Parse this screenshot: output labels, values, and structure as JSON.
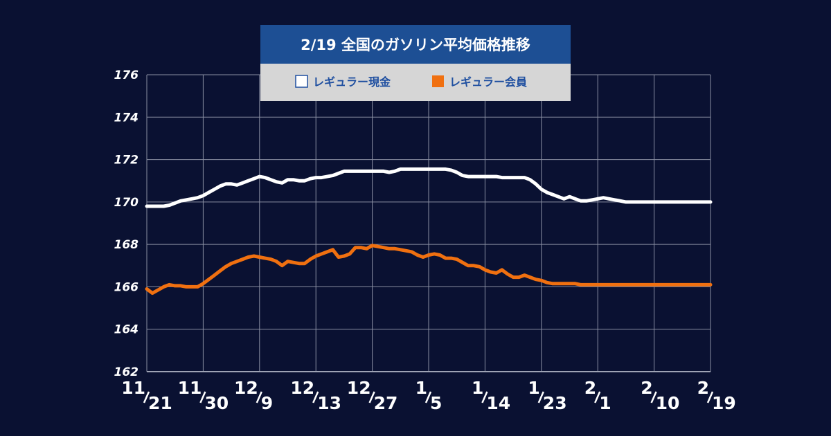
{
  "chart_data": {
    "type": "line",
    "title": "2/19 全国のガソリン平均価格推移",
    "legend_placement": "top-center",
    "grid": true,
    "ylim": [
      162,
      176
    ],
    "yticks": [
      "162",
      "164",
      "166",
      "168",
      "170",
      "172",
      "174",
      "176"
    ],
    "xticks": [
      {
        "main": "11",
        "sub": "21"
      },
      {
        "main": "11",
        "sub": "30"
      },
      {
        "main": "12",
        "sub": "9"
      },
      {
        "main": "12",
        "sub": "13"
      },
      {
        "main": "12",
        "sub": "27"
      },
      {
        "main": "1",
        "sub": "5"
      },
      {
        "main": "1",
        "sub": "14"
      },
      {
        "main": "1",
        "sub": "23"
      },
      {
        "main": "2",
        "sub": "1"
      },
      {
        "main": "2",
        "sub": "10"
      },
      {
        "main": "2",
        "sub": "19"
      }
    ],
    "x": [
      0,
      0.1,
      0.2,
      0.3,
      0.4,
      0.5,
      0.6,
      0.7,
      0.8,
      0.9,
      1.0,
      1.1,
      1.2,
      1.3,
      1.4,
      1.5,
      1.6,
      1.7,
      1.8,
      1.9,
      2.0,
      2.1,
      2.2,
      2.3,
      2.4,
      2.5,
      2.6,
      2.7,
      2.8,
      2.9,
      3.0,
      3.1,
      3.2,
      3.3,
      3.4,
      3.5,
      3.6,
      3.7,
      3.8,
      3.9,
      4.0,
      4.1,
      4.2,
      4.3,
      4.4,
      4.5,
      4.6,
      4.7,
      4.8,
      4.9,
      5.0,
      5.1,
      5.2,
      5.3,
      5.4,
      5.5,
      5.6,
      5.7,
      5.8,
      5.9,
      6.0,
      6.1,
      6.2,
      6.3,
      6.4,
      6.5,
      6.6,
      6.7,
      6.8,
      6.9,
      7.0,
      7.1,
      7.2,
      7.3,
      7.4,
      7.5,
      7.6,
      7.7,
      7.8,
      7.9,
      8.0,
      8.1,
      8.2,
      8.3,
      8.4,
      8.5,
      8.6,
      8.7,
      8.8,
      8.9,
      9.0,
      9.1,
      9.2,
      9.3,
      9.4,
      9.5,
      9.6,
      9.7,
      9.8,
      9.9,
      10.0
    ],
    "series": [
      {
        "name": "レギュラー現金",
        "color": "#ffffff",
        "values": [
          169.8,
          169.8,
          169.8,
          169.8,
          169.85,
          169.95,
          170.05,
          170.1,
          170.15,
          170.2,
          170.3,
          170.45,
          170.6,
          170.75,
          170.85,
          170.85,
          170.8,
          170.9,
          171.0,
          171.1,
          171.2,
          171.15,
          171.05,
          170.95,
          170.9,
          171.05,
          171.05,
          171.0,
          171.0,
          171.1,
          171.15,
          171.15,
          171.2,
          171.25,
          171.35,
          171.45,
          171.45,
          171.45,
          171.45,
          171.45,
          171.45,
          171.45,
          171.45,
          171.4,
          171.45,
          171.55,
          171.55,
          171.55,
          171.55,
          171.55,
          171.55,
          171.55,
          171.55,
          171.55,
          171.5,
          171.4,
          171.25,
          171.2,
          171.2,
          171.2,
          171.2,
          171.2,
          171.2,
          171.15,
          171.15,
          171.15,
          171.15,
          171.15,
          171.05,
          170.85,
          170.6,
          170.45,
          170.35,
          170.25,
          170.15,
          170.25,
          170.15,
          170.05,
          170.05,
          170.1,
          170.15,
          170.2,
          170.15,
          170.1,
          170.05,
          170.0,
          170.0,
          170.0,
          170.0,
          170.0,
          170.0,
          170.0,
          170.0,
          170.0,
          170.0,
          170.0,
          170.0,
          170.0,
          170.0,
          170.0,
          170.0
        ]
      },
      {
        "name": "レギュラー会員",
        "color": "#f07010",
        "values": [
          165.9,
          165.7,
          165.85,
          166.0,
          166.1,
          166.05,
          166.05,
          166.0,
          166.0,
          166.0,
          166.15,
          166.35,
          166.55,
          166.75,
          166.95,
          167.1,
          167.2,
          167.3,
          167.4,
          167.45,
          167.4,
          167.35,
          167.3,
          167.2,
          167.0,
          167.2,
          167.15,
          167.1,
          167.1,
          167.3,
          167.45,
          167.55,
          167.65,
          167.75,
          167.4,
          167.45,
          167.55,
          167.85,
          167.85,
          167.8,
          167.95,
          167.9,
          167.85,
          167.8,
          167.8,
          167.75,
          167.7,
          167.65,
          167.5,
          167.4,
          167.5,
          167.55,
          167.5,
          167.35,
          167.35,
          167.3,
          167.15,
          167.0,
          167.0,
          166.95,
          166.8,
          166.7,
          166.65,
          166.8,
          166.6,
          166.45,
          166.45,
          166.55,
          166.45,
          166.35,
          166.3,
          166.2,
          166.15,
          166.15,
          166.15,
          166.15,
          166.15,
          166.1,
          166.1,
          166.1,
          166.1,
          166.1,
          166.1,
          166.1,
          166.1,
          166.1,
          166.1,
          166.1,
          166.1,
          166.1,
          166.1,
          166.1,
          166.1,
          166.1,
          166.1,
          166.1,
          166.1,
          166.1,
          166.1,
          166.1,
          166.1
        ]
      }
    ]
  }
}
